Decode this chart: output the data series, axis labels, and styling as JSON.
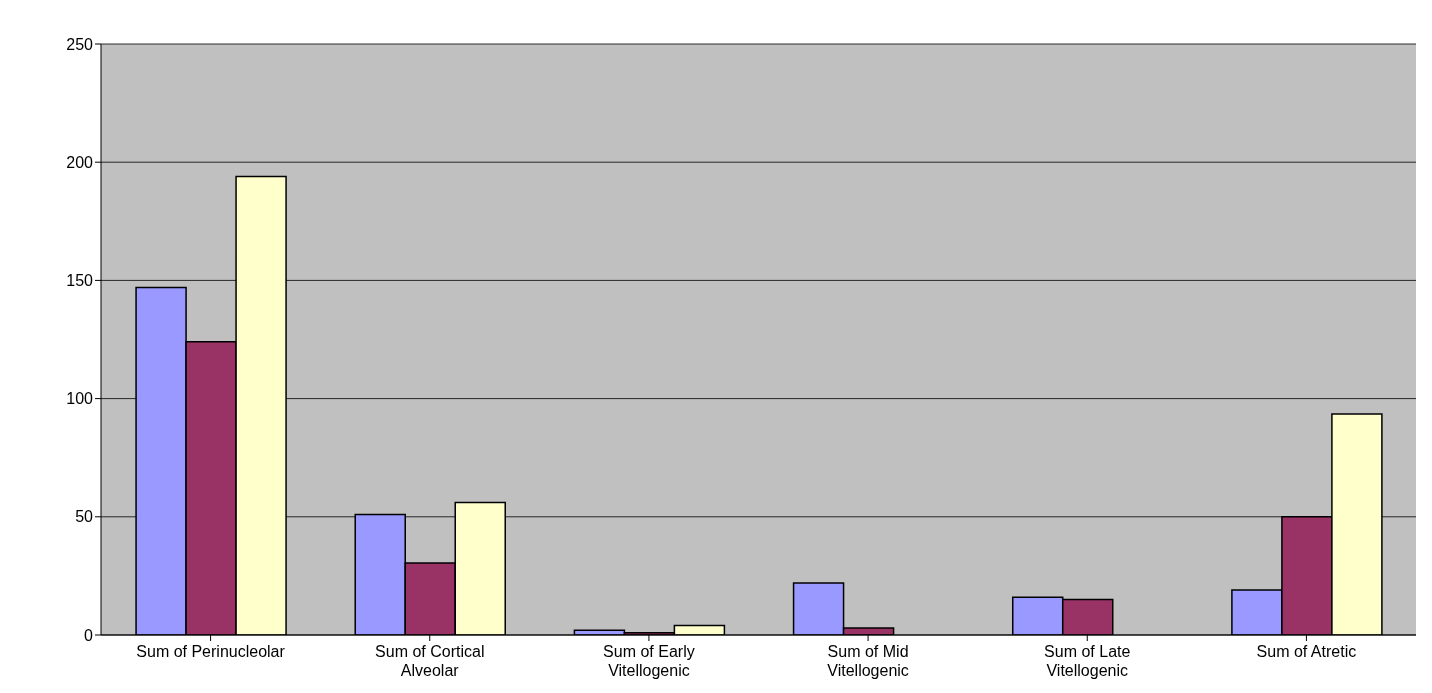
{
  "chart_data": {
    "type": "bar",
    "categories": [
      "Sum of Perinucleolar",
      "Sum of Cortical Alveolar",
      "Sum of Early Vitellogenic",
      "Sum of Mid Vitellogenic",
      "Sum of Late Vitellogenic",
      "Sum of Atretic"
    ],
    "series": [
      {
        "color": "#9999ff",
        "values": [
          147,
          51,
          2,
          22,
          16,
          19
        ]
      },
      {
        "color": "#993366",
        "values": [
          124,
          30.5,
          1,
          3,
          15,
          50
        ]
      },
      {
        "color": "#ffffcc",
        "values": [
          194,
          56,
          4,
          null,
          null,
          93.5
        ]
      }
    ],
    "ylim": [
      0,
      250
    ],
    "yticks": [
      0,
      50,
      100,
      150,
      200,
      250
    ],
    "grid": "y",
    "legend": false
  }
}
